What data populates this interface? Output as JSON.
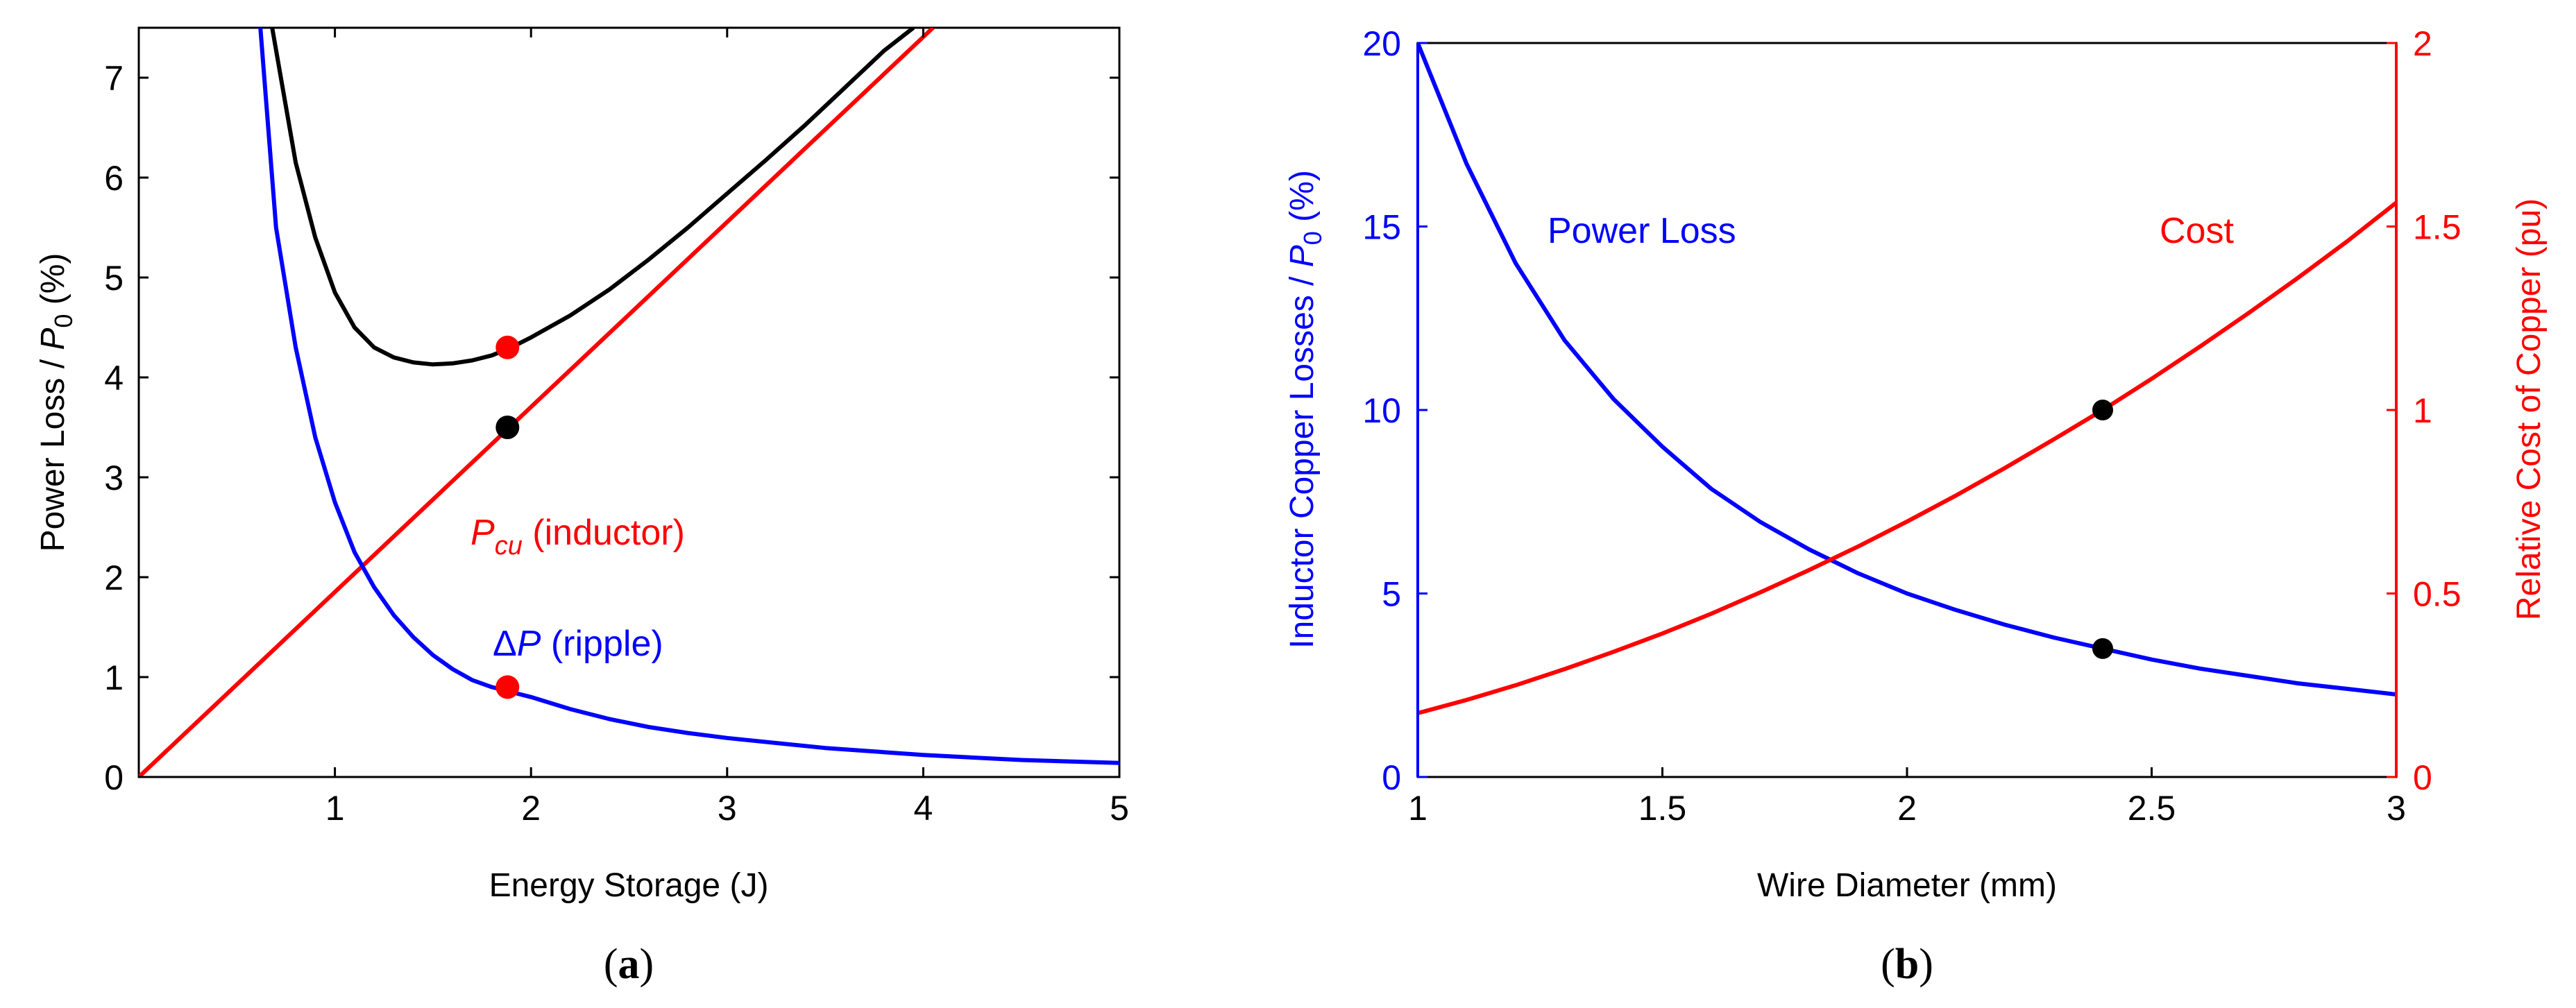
{
  "chart_data": [
    {
      "panel": "a",
      "type": "line",
      "caption": {
        "open": "(",
        "letter": "a",
        "close": ")"
      },
      "xlabel": "Energy Storage (J)",
      "ylabel": {
        "prefix": "Power Loss / ",
        "var": "P",
        "sub": "0",
        "suffix": " (%)"
      },
      "xlim": [
        0,
        5
      ],
      "ylim": [
        0,
        7.5
      ],
      "xticks": [
        1,
        2,
        3,
        4,
        5
      ],
      "yticks": [
        0,
        1,
        2,
        3,
        4,
        5,
        6,
        7
      ],
      "colors": {
        "total": "#000000",
        "inductor": "#ff0000",
        "ripple": "#0000ff",
        "axis": "#000000"
      },
      "series": [
        {
          "name": "total",
          "color": "#000000",
          "x": [
            0.68,
            0.8,
            0.9,
            1.0,
            1.1,
            1.2,
            1.3,
            1.4,
            1.5,
            1.6,
            1.7,
            1.8,
            1.9,
            2.0,
            2.2,
            2.4,
            2.6,
            2.8,
            3.0,
            3.2,
            3.4,
            3.6,
            3.8,
            3.95
          ],
          "y": [
            7.5,
            6.15,
            5.4,
            4.85,
            4.5,
            4.3,
            4.2,
            4.15,
            4.13,
            4.14,
            4.17,
            4.22,
            4.3,
            4.4,
            4.62,
            4.88,
            5.18,
            5.5,
            5.84,
            6.18,
            6.53,
            6.9,
            7.27,
            7.5
          ]
        },
        {
          "name": "inductor",
          "color": "#ff0000",
          "x": [
            0,
            4.05
          ],
          "y": [
            0,
            7.5
          ]
        },
        {
          "name": "ripple",
          "color": "#0000ff",
          "x": [
            0.62,
            0.7,
            0.8,
            0.9,
            1.0,
            1.1,
            1.2,
            1.3,
            1.4,
            1.5,
            1.6,
            1.7,
            1.8,
            1.9,
            2.0,
            2.2,
            2.4,
            2.6,
            2.8,
            3.0,
            3.5,
            4.0,
            4.5,
            5.0
          ],
          "y": [
            7.5,
            5.5,
            4.3,
            3.4,
            2.75,
            2.25,
            1.9,
            1.62,
            1.4,
            1.22,
            1.08,
            0.97,
            0.9,
            0.85,
            0.8,
            0.68,
            0.58,
            0.5,
            0.44,
            0.39,
            0.29,
            0.22,
            0.17,
            0.14
          ]
        }
      ],
      "markers": [
        {
          "x": 1.88,
          "y": 4.3,
          "color": "#ff0000"
        },
        {
          "x": 1.88,
          "y": 3.5,
          "color": "#000000"
        },
        {
          "x": 1.88,
          "y": 0.9,
          "color": "#ff0000"
        }
      ],
      "annotations": {
        "pcu": {
          "var": "P",
          "sub": "cu",
          "text": " (inductor)",
          "color": "#ff0000"
        },
        "dp": {
          "sym": "Δ",
          "var": "P",
          "text": " (ripple)",
          "color": "#0000ff"
        }
      }
    },
    {
      "panel": "b",
      "type": "line",
      "caption": {
        "open": "(",
        "letter": "b",
        "close": ")"
      },
      "xlabel": "Wire Diameter (mm)",
      "ylabel_left": {
        "prefix": "Inductor Copper Losses / ",
        "var": "P",
        "sub": "0",
        "suffix": " (%)"
      },
      "ylabel_right": "Relative Cost of Copper (pu)",
      "xlim": [
        1,
        3
      ],
      "ylim_left": [
        0,
        20
      ],
      "ylim_right": [
        0,
        2
      ],
      "xticks": [
        1,
        1.5,
        2,
        2.5,
        3
      ],
      "yticks_left": [
        0,
        5,
        10,
        15,
        20
      ],
      "yticks_right": [
        0,
        0.5,
        1,
        1.5,
        2
      ],
      "colors": {
        "loss": "#0000ff",
        "cost": "#ff0000",
        "axis": "#000000"
      },
      "series": [
        {
          "name": "Power Loss",
          "axis": "left",
          "color": "#0000ff",
          "x": [
            1.0,
            1.1,
            1.2,
            1.3,
            1.4,
            1.5,
            1.6,
            1.7,
            1.8,
            1.9,
            2.0,
            2.1,
            2.2,
            2.3,
            2.4,
            2.5,
            2.6,
            2.7,
            2.8,
            2.9,
            3.0
          ],
          "y": [
            20,
            16.7,
            14.0,
            11.9,
            10.3,
            9.0,
            7.85,
            6.95,
            6.2,
            5.55,
            5.0,
            4.55,
            4.15,
            3.8,
            3.5,
            3.2,
            2.95,
            2.75,
            2.55,
            2.4,
            2.25
          ]
        },
        {
          "name": "Cost",
          "axis": "right",
          "color": "#ff0000",
          "x": [
            1.0,
            1.1,
            1.2,
            1.3,
            1.4,
            1.5,
            1.6,
            1.7,
            1.8,
            1.9,
            2.0,
            2.1,
            2.2,
            2.3,
            2.4,
            2.5,
            2.6,
            2.7,
            2.8,
            2.9,
            3.0
          ],
          "y": [
            0.174,
            0.21,
            0.25,
            0.294,
            0.341,
            0.391,
            0.445,
            0.503,
            0.564,
            0.628,
            0.696,
            0.767,
            0.842,
            0.92,
            1.0,
            1.085,
            1.174,
            1.266,
            1.361,
            1.46,
            1.565
          ]
        }
      ],
      "markers": [
        {
          "x": 2.4,
          "y": 10,
          "axis": "left",
          "color": "#000000"
        },
        {
          "x": 2.4,
          "y": 3.5,
          "axis": "left",
          "color": "#000000"
        }
      ],
      "annotations": {
        "loss": {
          "text": "Power Loss",
          "color": "#0000ff"
        },
        "cost": {
          "text": "Cost",
          "color": "#ff0000"
        }
      }
    }
  ]
}
